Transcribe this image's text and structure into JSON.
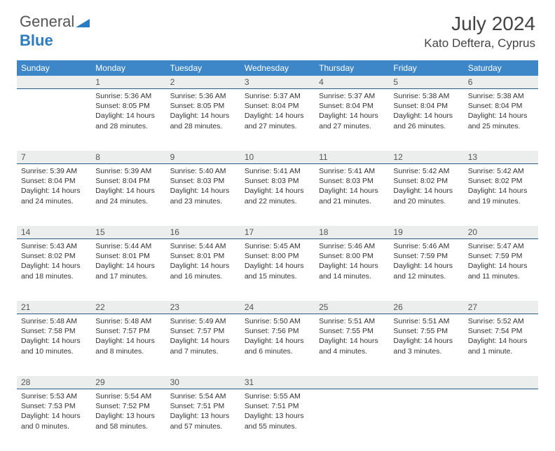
{
  "brand": {
    "part1": "General",
    "part2": "Blue"
  },
  "title": "July 2024",
  "location": "Kato Deftera, Cyprus",
  "colors": {
    "header_bg": "#3d87c9",
    "header_text": "#ffffff",
    "daynum_bg": "#eceded",
    "daynum_border": "#2a5b87",
    "body_text": "#333333",
    "brand_gray": "#555555",
    "brand_blue": "#2a7bbf"
  },
  "weekdays": [
    "Sunday",
    "Monday",
    "Tuesday",
    "Wednesday",
    "Thursday",
    "Friday",
    "Saturday"
  ],
  "weeks": [
    [
      null,
      {
        "n": "1",
        "sr": "5:36 AM",
        "ss": "8:05 PM",
        "dl": "14 hours and 28 minutes."
      },
      {
        "n": "2",
        "sr": "5:36 AM",
        "ss": "8:05 PM",
        "dl": "14 hours and 28 minutes."
      },
      {
        "n": "3",
        "sr": "5:37 AM",
        "ss": "8:04 PM",
        "dl": "14 hours and 27 minutes."
      },
      {
        "n": "4",
        "sr": "5:37 AM",
        "ss": "8:04 PM",
        "dl": "14 hours and 27 minutes."
      },
      {
        "n": "5",
        "sr": "5:38 AM",
        "ss": "8:04 PM",
        "dl": "14 hours and 26 minutes."
      },
      {
        "n": "6",
        "sr": "5:38 AM",
        "ss": "8:04 PM",
        "dl": "14 hours and 25 minutes."
      }
    ],
    [
      {
        "n": "7",
        "sr": "5:39 AM",
        "ss": "8:04 PM",
        "dl": "14 hours and 24 minutes."
      },
      {
        "n": "8",
        "sr": "5:39 AM",
        "ss": "8:04 PM",
        "dl": "14 hours and 24 minutes."
      },
      {
        "n": "9",
        "sr": "5:40 AM",
        "ss": "8:03 PM",
        "dl": "14 hours and 23 minutes."
      },
      {
        "n": "10",
        "sr": "5:41 AM",
        "ss": "8:03 PM",
        "dl": "14 hours and 22 minutes."
      },
      {
        "n": "11",
        "sr": "5:41 AM",
        "ss": "8:03 PM",
        "dl": "14 hours and 21 minutes."
      },
      {
        "n": "12",
        "sr": "5:42 AM",
        "ss": "8:02 PM",
        "dl": "14 hours and 20 minutes."
      },
      {
        "n": "13",
        "sr": "5:42 AM",
        "ss": "8:02 PM",
        "dl": "14 hours and 19 minutes."
      }
    ],
    [
      {
        "n": "14",
        "sr": "5:43 AM",
        "ss": "8:02 PM",
        "dl": "14 hours and 18 minutes."
      },
      {
        "n": "15",
        "sr": "5:44 AM",
        "ss": "8:01 PM",
        "dl": "14 hours and 17 minutes."
      },
      {
        "n": "16",
        "sr": "5:44 AM",
        "ss": "8:01 PM",
        "dl": "14 hours and 16 minutes."
      },
      {
        "n": "17",
        "sr": "5:45 AM",
        "ss": "8:00 PM",
        "dl": "14 hours and 15 minutes."
      },
      {
        "n": "18",
        "sr": "5:46 AM",
        "ss": "8:00 PM",
        "dl": "14 hours and 14 minutes."
      },
      {
        "n": "19",
        "sr": "5:46 AM",
        "ss": "7:59 PM",
        "dl": "14 hours and 12 minutes."
      },
      {
        "n": "20",
        "sr": "5:47 AM",
        "ss": "7:59 PM",
        "dl": "14 hours and 11 minutes."
      }
    ],
    [
      {
        "n": "21",
        "sr": "5:48 AM",
        "ss": "7:58 PM",
        "dl": "14 hours and 10 minutes."
      },
      {
        "n": "22",
        "sr": "5:48 AM",
        "ss": "7:57 PM",
        "dl": "14 hours and 8 minutes."
      },
      {
        "n": "23",
        "sr": "5:49 AM",
        "ss": "7:57 PM",
        "dl": "14 hours and 7 minutes."
      },
      {
        "n": "24",
        "sr": "5:50 AM",
        "ss": "7:56 PM",
        "dl": "14 hours and 6 minutes."
      },
      {
        "n": "25",
        "sr": "5:51 AM",
        "ss": "7:55 PM",
        "dl": "14 hours and 4 minutes."
      },
      {
        "n": "26",
        "sr": "5:51 AM",
        "ss": "7:55 PM",
        "dl": "14 hours and 3 minutes."
      },
      {
        "n": "27",
        "sr": "5:52 AM",
        "ss": "7:54 PM",
        "dl": "14 hours and 1 minute."
      }
    ],
    [
      {
        "n": "28",
        "sr": "5:53 AM",
        "ss": "7:53 PM",
        "dl": "14 hours and 0 minutes."
      },
      {
        "n": "29",
        "sr": "5:54 AM",
        "ss": "7:52 PM",
        "dl": "13 hours and 58 minutes."
      },
      {
        "n": "30",
        "sr": "5:54 AM",
        "ss": "7:51 PM",
        "dl": "13 hours and 57 minutes."
      },
      {
        "n": "31",
        "sr": "5:55 AM",
        "ss": "7:51 PM",
        "dl": "13 hours and 55 minutes."
      },
      null,
      null,
      null
    ]
  ],
  "labels": {
    "sunrise": "Sunrise:",
    "sunset": "Sunset:",
    "daylight": "Daylight:"
  }
}
